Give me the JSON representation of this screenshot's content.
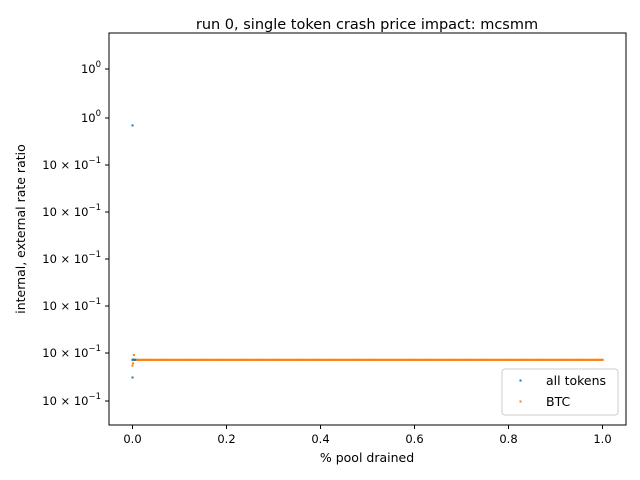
{
  "chart_data": {
    "type": "scatter",
    "title": "run 0, single token crash price impact: mcsmm",
    "xlabel": "% pool drained",
    "ylabel": "internal, external rate ratio",
    "yscale": "log",
    "xlim": [
      -0.05,
      1.05
    ],
    "x_ticks": [
      {
        "value": 0.0,
        "label": "0.0"
      },
      {
        "value": 0.2,
        "label": "0.2"
      },
      {
        "value": 0.4,
        "label": "0.4"
      },
      {
        "value": 0.6,
        "label": "0.6"
      },
      {
        "value": 0.8,
        "label": "0.8"
      },
      {
        "value": 1.0,
        "label": "1.0"
      }
    ],
    "y_tick_labels": [
      {
        "mantissa": "",
        "base": "10",
        "exp": "0"
      },
      {
        "mantissa": "",
        "base": "10",
        "exp": "0"
      },
      {
        "mantissa": "10",
        "base": "",
        "exp": "−1"
      },
      {
        "mantissa": "10",
        "base": "",
        "exp": "−1"
      },
      {
        "mantissa": "10",
        "base": "",
        "exp": "−1"
      },
      {
        "mantissa": "10",
        "base": "",
        "exp": "−1"
      },
      {
        "mantissa": "10",
        "base": "",
        "exp": "−1"
      },
      {
        "mantissa": "10",
        "base": "",
        "exp": "−1"
      }
    ],
    "y_tick_strings": [
      "10^0",
      "10^0",
      "10×10^-1",
      "10×10^-1",
      "10×10^-1",
      "10×10^-1",
      "10×10^-1",
      "10×10^-1"
    ],
    "legend_position": "lower-right",
    "grid": false,
    "series": [
      {
        "name": "all tokens",
        "color": "#1f77b4",
        "points": [
          [
            0.0,
            1.02
          ],
          [
            0.0,
            1.0
          ],
          [
            0.0,
            0.9985
          ],
          [
            0.002,
            1.0
          ],
          [
            0.004,
            1.0
          ],
          [
            0.006,
            1.0
          ]
        ]
      },
      {
        "name": "BTC",
        "color": "#ff7f0e",
        "points_description": "dense points at ratio 1.0 spanning x from 0.0 to 1.0",
        "x_start": 0.0,
        "x_end": 1.0,
        "y_value": 1.0,
        "extra_points": [
          [
            0.0,
            0.9995
          ],
          [
            0.003,
            1.0004
          ],
          [
            0.001,
            0.9997
          ]
        ]
      }
    ]
  },
  "legend": {
    "entries": [
      "all tokens",
      "BTC"
    ]
  }
}
